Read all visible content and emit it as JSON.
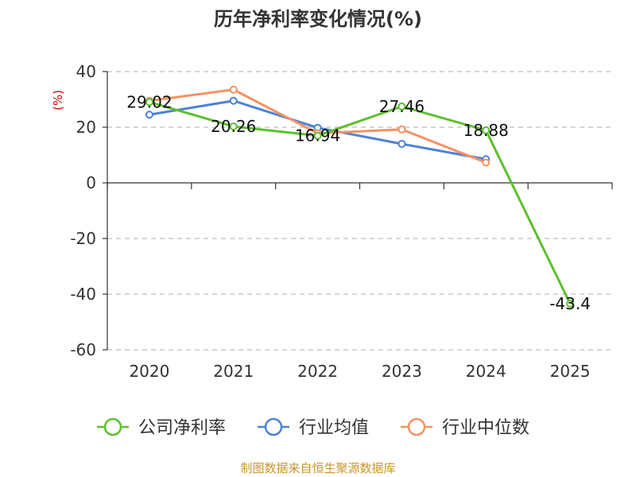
{
  "chart_data": {
    "type": "line",
    "title": "历年净利率变化情况(%)",
    "ylabel": "(%)",
    "xlabel": "",
    "categories": [
      "2020",
      "2021",
      "2022",
      "2023",
      "2024",
      "2025"
    ],
    "ylim": [
      -60,
      40
    ],
    "yticks": [
      40,
      20,
      0,
      -20,
      -40,
      -60
    ],
    "grid": true,
    "legend_position": "bottom",
    "series": [
      {
        "name": "公司净利率",
        "color": "#5cc02d",
        "values": [
          29.02,
          20.26,
          16.94,
          27.46,
          18.88,
          -43.4
        ],
        "labels": [
          "29.02",
          "20.26",
          "16.94",
          "27.46",
          "18.88",
          "-43.4"
        ]
      },
      {
        "name": "行业均值",
        "color": "#4f81d6",
        "values": [
          24.5,
          29.5,
          19.8,
          14.0,
          8.5,
          null
        ]
      },
      {
        "name": "行业中位数",
        "color": "#f59262",
        "values": [
          29.5,
          33.5,
          17.8,
          19.2,
          7.3,
          null
        ]
      }
    ],
    "source": "制图数据来自恒生聚源数据库"
  }
}
